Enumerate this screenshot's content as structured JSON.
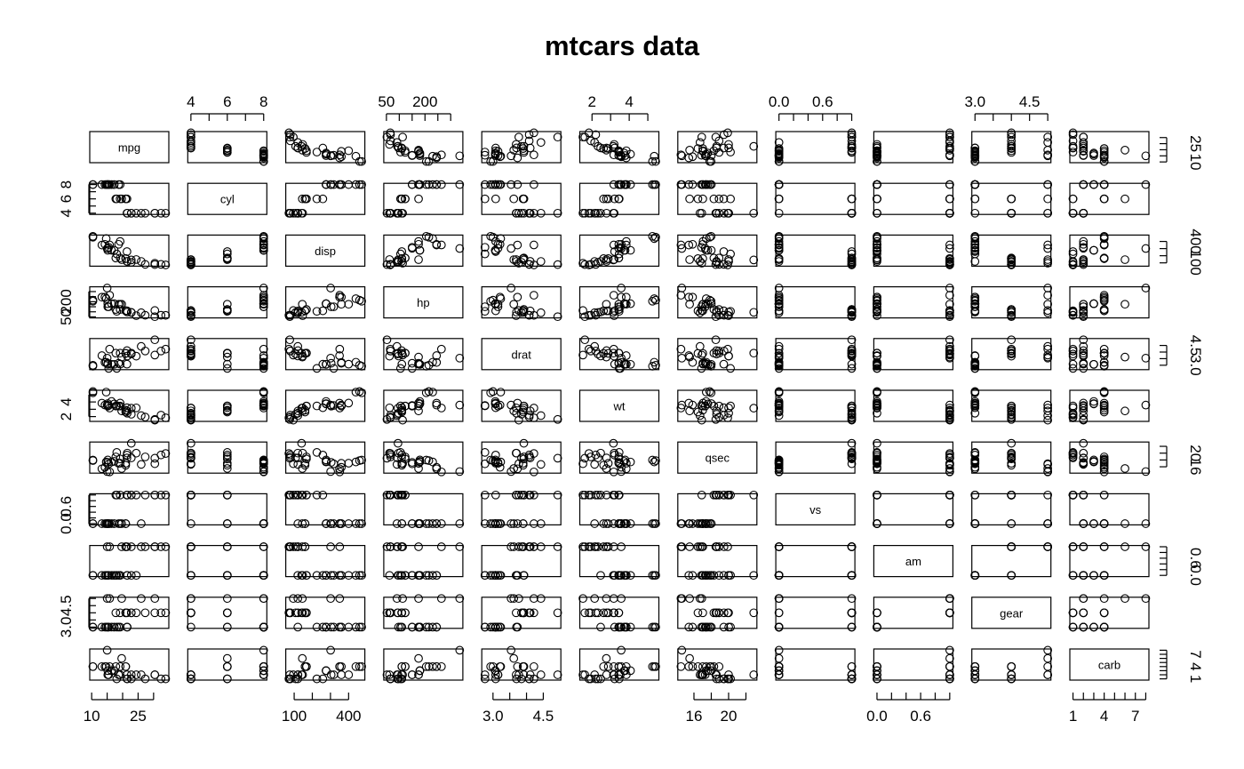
{
  "chart_data": {
    "type": "scatter",
    "title": "mtcars data",
    "variables": [
      "mpg",
      "cyl",
      "disp",
      "hp",
      "drat",
      "wt",
      "qsec",
      "vs",
      "am",
      "gear",
      "carb"
    ],
    "axes": [
      {
        "var": "mpg",
        "range": [
          10.4,
          33.9
        ],
        "ticks": [
          10,
          15,
          20,
          25,
          30
        ],
        "labels": [
          "10",
          "25"
        ],
        "side": "bottom"
      },
      {
        "var": "cyl",
        "range": [
          4,
          8
        ],
        "ticks": [
          4,
          5,
          6,
          7,
          8
        ],
        "labels": [
          "4",
          "6",
          "8"
        ],
        "side": "top"
      },
      {
        "var": "disp",
        "range": [
          71.1,
          472
        ],
        "ticks": [
          100,
          200,
          300,
          400
        ],
        "labels": [
          "100",
          "400"
        ],
        "side": "bottom"
      },
      {
        "var": "hp",
        "range": [
          52,
          335
        ],
        "ticks": [
          50,
          100,
          150,
          200,
          250,
          300
        ],
        "labels": [
          "50",
          "200"
        ],
        "side": "top"
      },
      {
        "var": "drat",
        "range": [
          2.76,
          4.93
        ],
        "ticks": [
          3.0,
          3.5,
          4.0,
          4.5
        ],
        "labels": [
          "3.0",
          "4.5"
        ],
        "side": "bottom"
      },
      {
        "var": "wt",
        "range": [
          1.513,
          5.424
        ],
        "ticks": [
          2,
          3,
          4,
          5
        ],
        "labels": [
          "2",
          "4"
        ],
        "side": "top"
      },
      {
        "var": "qsec",
        "range": [
          14.5,
          22.9
        ],
        "ticks": [
          16,
          18,
          20,
          22
        ],
        "labels": [
          "16",
          "20"
        ],
        "side": "bottom"
      },
      {
        "var": "vs",
        "range": [
          0,
          1
        ],
        "ticks": [
          0,
          0.2,
          0.4,
          0.6,
          0.8,
          1.0
        ],
        "labels": [
          "0.0",
          "0.6"
        ],
        "side": "top"
      },
      {
        "var": "am",
        "range": [
          0,
          1
        ],
        "ticks": [
          0,
          0.2,
          0.4,
          0.6,
          0.8,
          1.0
        ],
        "labels": [
          "0.0",
          "0.6"
        ],
        "side": "bottom"
      },
      {
        "var": "gear",
        "range": [
          3,
          5
        ],
        "ticks": [
          3.0,
          3.5,
          4.0,
          4.5,
          5.0
        ],
        "labels": [
          "3.0",
          "4.5"
        ],
        "side": "top"
      },
      {
        "var": "carb",
        "range": [
          1,
          8
        ],
        "ticks": [
          1,
          2,
          3,
          4,
          5,
          6,
          7,
          8
        ],
        "labels": [
          "1",
          "4",
          "7"
        ],
        "side": "bottom"
      }
    ],
    "rows": [
      [
        21.0,
        6,
        160.0,
        110,
        3.9,
        2.62,
        16.46,
        0,
        1,
        4,
        4
      ],
      [
        21.0,
        6,
        160.0,
        110,
        3.9,
        2.875,
        17.02,
        0,
        1,
        4,
        4
      ],
      [
        22.8,
        4,
        108.0,
        93,
        3.85,
        2.32,
        18.61,
        1,
        1,
        4,
        1
      ],
      [
        21.4,
        6,
        258.0,
        110,
        3.08,
        3.215,
        19.44,
        1,
        0,
        3,
        1
      ],
      [
        18.7,
        8,
        360.0,
        175,
        3.15,
        3.44,
        17.02,
        0,
        0,
        3,
        2
      ],
      [
        18.1,
        6,
        225.0,
        105,
        2.76,
        3.46,
        20.22,
        1,
        0,
        3,
        1
      ],
      [
        14.3,
        8,
        360.0,
        245,
        3.21,
        3.57,
        15.84,
        0,
        0,
        3,
        4
      ],
      [
        24.4,
        4,
        146.7,
        62,
        3.69,
        3.19,
        20.0,
        1,
        0,
        4,
        2
      ],
      [
        22.8,
        4,
        140.8,
        95,
        3.92,
        3.15,
        22.9,
        1,
        0,
        4,
        2
      ],
      [
        19.2,
        6,
        167.6,
        123,
        3.92,
        3.44,
        18.3,
        1,
        0,
        4,
        4
      ],
      [
        17.8,
        6,
        167.6,
        123,
        3.92,
        3.44,
        18.9,
        1,
        0,
        4,
        4
      ],
      [
        16.4,
        8,
        275.8,
        180,
        3.07,
        4.07,
        17.4,
        0,
        0,
        3,
        3
      ],
      [
        17.3,
        8,
        275.8,
        180,
        3.07,
        3.73,
        17.6,
        0,
        0,
        3,
        3
      ],
      [
        15.2,
        8,
        275.8,
        180,
        3.07,
        3.78,
        18.0,
        0,
        0,
        3,
        3
      ],
      [
        10.4,
        8,
        472.0,
        205,
        2.93,
        5.25,
        17.98,
        0,
        0,
        3,
        4
      ],
      [
        10.4,
        8,
        460.0,
        215,
        3.0,
        5.424,
        17.82,
        0,
        0,
        3,
        4
      ],
      [
        14.7,
        8,
        440.0,
        230,
        3.23,
        5.345,
        17.42,
        0,
        0,
        3,
        4
      ],
      [
        32.4,
        4,
        78.7,
        66,
        4.08,
        2.2,
        19.47,
        1,
        1,
        4,
        1
      ],
      [
        30.4,
        4,
        75.7,
        52,
        4.93,
        1.615,
        18.52,
        1,
        1,
        4,
        2
      ],
      [
        33.9,
        4,
        71.1,
        65,
        4.22,
        1.835,
        19.9,
        1,
        1,
        4,
        1
      ],
      [
        21.5,
        4,
        120.1,
        97,
        3.7,
        2.465,
        20.01,
        1,
        0,
        3,
        1
      ],
      [
        15.5,
        8,
        318.0,
        150,
        2.76,
        3.52,
        16.87,
        0,
        0,
        3,
        2
      ],
      [
        15.2,
        8,
        304.0,
        150,
        3.15,
        3.435,
        17.3,
        0,
        0,
        3,
        2
      ],
      [
        13.3,
        8,
        350.0,
        245,
        3.73,
        3.84,
        15.41,
        0,
        0,
        3,
        4
      ],
      [
        19.2,
        8,
        400.0,
        175,
        3.08,
        3.845,
        17.05,
        0,
        0,
        3,
        2
      ],
      [
        27.3,
        4,
        79.0,
        66,
        4.08,
        1.935,
        18.9,
        1,
        1,
        4,
        1
      ],
      [
        26.0,
        4,
        120.3,
        91,
        4.43,
        2.14,
        16.7,
        0,
        1,
        5,
        2
      ],
      [
        30.4,
        4,
        95.1,
        113,
        3.77,
        1.513,
        16.9,
        1,
        1,
        5,
        2
      ],
      [
        15.8,
        8,
        351.0,
        264,
        4.22,
        3.17,
        14.5,
        0,
        1,
        5,
        4
      ],
      [
        19.7,
        6,
        145.0,
        175,
        3.62,
        2.77,
        15.5,
        0,
        1,
        5,
        6
      ],
      [
        15.0,
        8,
        301.0,
        335,
        3.54,
        3.57,
        14.6,
        0,
        1,
        5,
        8
      ],
      [
        21.4,
        4,
        121.0,
        109,
        4.11,
        2.78,
        18.6,
        1,
        1,
        4,
        2
      ]
    ],
    "grid": false,
    "legend": "none"
  }
}
